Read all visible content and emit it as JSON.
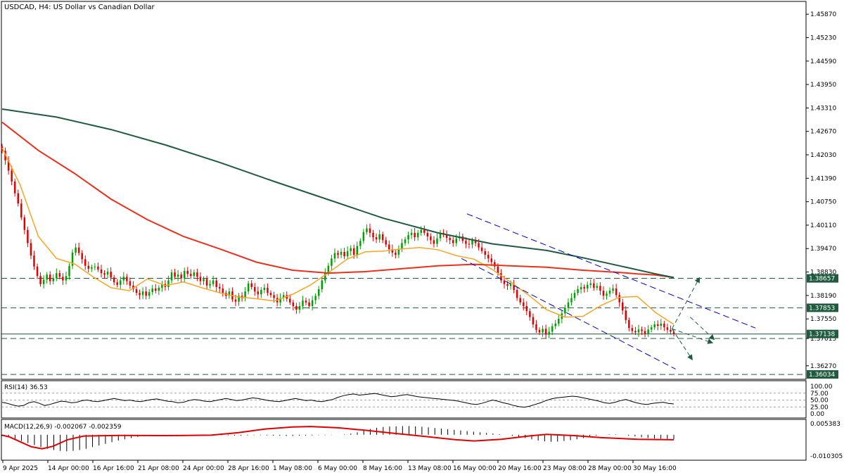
{
  "header": {
    "title": "USDCAD, H4:  US Dollar vs Canadian Dollar"
  },
  "colors": {
    "bull": "#00a000",
    "bear": "#e00000",
    "ma_fast": "#f5a623",
    "ma_mid": "#e8321e",
    "ma_slow": "#1f5c3f",
    "channel": "#0000cc",
    "level": "#1f5c3f",
    "arrow": "#1f5c3f",
    "rsi": "#000000",
    "macd_signal": "#e00000",
    "macd_hist": "#000000"
  },
  "chart_data": [
    {
      "type": "line",
      "name": "price",
      "ylim": [
        1.3592,
        1.462
      ],
      "price_axis_ticks": [
        "1.45870",
        "1.45230",
        "1.44590",
        "1.43950",
        "1.43310",
        "1.42670",
        "1.42030",
        "1.41390",
        "1.40750",
        "1.40110",
        "1.39470",
        "1.38830",
        "1.38190",
        "1.37550",
        "1.37015",
        "1.36270"
      ],
      "level_badges": [
        {
          "text": "1.38657",
          "value": 1.38657
        },
        {
          "text": "1.37853",
          "value": 1.37853
        },
        {
          "text": "1.37138",
          "value": 1.37138
        },
        {
          "text": "1.36034",
          "value": 1.36034
        }
      ],
      "horizontal_levels": [
        1.38657,
        1.37853,
        1.37015,
        1.36034
      ],
      "close_line": 1.37138,
      "x_labels": [
        "9 Apr 2025",
        "14 Apr 00:00",
        "16 Apr 16:00",
        "21 Apr 08:00",
        "24 Apr 00:00",
        "28 Apr 16:00",
        "1 May 08:00",
        "6 May 00:00",
        "8 May 16:00",
        "13 May 08:00",
        "16 May 00:00",
        "20 May 16:00",
        "23 May 08:00",
        "28 May 00:00",
        "30 May 16:00"
      ],
      "close_series": [
        1.4214,
        1.4188,
        1.416,
        1.413,
        1.4098,
        1.407,
        1.4032,
        1.3998,
        1.3962,
        1.3928,
        1.3898,
        1.3872,
        1.385,
        1.3862,
        1.3876,
        1.3858,
        1.3866,
        1.388,
        1.387,
        1.386,
        1.3872,
        1.39,
        1.3936,
        1.395,
        1.3935,
        1.3918,
        1.39,
        1.3892,
        1.3896,
        1.3898,
        1.389,
        1.388,
        1.3876,
        1.3884,
        1.3868,
        1.3855,
        1.3848,
        1.386,
        1.387,
        1.3858,
        1.3846,
        1.3836,
        1.3826,
        1.382,
        1.383,
        1.3818,
        1.3828,
        1.3838,
        1.3832,
        1.384,
        1.385,
        1.3842,
        1.386,
        1.3882,
        1.387,
        1.3876,
        1.3866,
        1.3886,
        1.3878,
        1.3872,
        1.3882,
        1.387,
        1.3858,
        1.3864,
        1.3846,
        1.385,
        1.386,
        1.3842,
        1.3838,
        1.3826,
        1.3818,
        1.383,
        1.3808,
        1.3802,
        1.3818,
        1.3812,
        1.383,
        1.3852,
        1.3842,
        1.383,
        1.3822,
        1.3834,
        1.384,
        1.3826,
        1.382,
        1.3812,
        1.38,
        1.3812,
        1.382,
        1.381,
        1.38,
        1.379,
        1.378,
        1.379,
        1.3805,
        1.38,
        1.379,
        1.3806,
        1.3818,
        1.3836,
        1.386,
        1.388,
        1.39,
        1.392,
        1.3935,
        1.393,
        1.3938,
        1.3926,
        1.394,
        1.3948,
        1.393,
        1.3954,
        1.3968,
        1.3992,
        1.4002,
        1.399,
        1.3978,
        1.3972,
        1.3986,
        1.397,
        1.3958,
        1.3945,
        1.3936,
        1.393,
        1.3946,
        1.3962,
        1.3972,
        1.3984,
        1.399,
        1.3978,
        1.399,
        1.3998,
        1.399,
        1.398,
        1.397,
        1.396,
        1.3975,
        1.399,
        1.3985,
        1.3976,
        1.397,
        1.3962,
        1.3975,
        1.398,
        1.3968,
        1.396,
        1.3958,
        1.397,
        1.3962,
        1.395,
        1.394,
        1.393,
        1.392,
        1.391,
        1.3898,
        1.388,
        1.386,
        1.385,
        1.3845,
        1.385,
        1.3834,
        1.3812,
        1.38,
        1.379,
        1.3776,
        1.376,
        1.374,
        1.3725,
        1.3718,
        1.3728,
        1.3712,
        1.372,
        1.3735,
        1.3742,
        1.3755,
        1.377,
        1.3785,
        1.38,
        1.3812,
        1.3826,
        1.3836,
        1.3842,
        1.3838,
        1.3848,
        1.3852,
        1.384,
        1.3845,
        1.3832,
        1.3818,
        1.3824,
        1.3832,
        1.3838,
        1.382,
        1.38,
        1.3778,
        1.3752,
        1.373,
        1.3722,
        1.3718,
        1.3726,
        1.3722,
        1.3715,
        1.3726,
        1.3732,
        1.374,
        1.3736,
        1.3742,
        1.3732,
        1.3725,
        1.372,
        1.37138
      ],
      "overlays": [
        {
          "name": "fast MA (orange)",
          "points": [
            [
              0,
              1.4222
            ],
            [
              20,
              1.412
            ],
            [
              40,
              1.398
            ],
            [
              60,
              1.392
            ],
            [
              80,
              1.3905
            ],
            [
              100,
              1.387
            ],
            [
              120,
              1.384
            ],
            [
              140,
              1.3832
            ],
            [
              160,
              1.3864
            ],
            [
              180,
              1.3846
            ],
            [
              200,
              1.3856
            ],
            [
              220,
              1.384
            ],
            [
              240,
              1.3826
            ],
            [
              260,
              1.3815
            ],
            [
              280,
              1.381
            ],
            [
              300,
              1.3804
            ],
            [
              320,
              1.3822
            ],
            [
              340,
              1.3848
            ],
            [
              360,
              1.3882
            ],
            [
              380,
              1.3918
            ],
            [
              400,
              1.3938
            ],
            [
              420,
              1.394
            ],
            [
              440,
              1.3946
            ],
            [
              460,
              1.395
            ],
            [
              480,
              1.3944
            ],
            [
              500,
              1.3928
            ],
            [
              520,
              1.3918
            ],
            [
              540,
              1.389
            ],
            [
              560,
              1.3856
            ],
            [
              580,
              1.382
            ],
            [
              600,
              1.378
            ],
            [
              620,
              1.376
            ],
            [
              640,
              1.3762
            ],
            [
              660,
              1.3792
            ],
            [
              680,
              1.3814
            ],
            [
              700,
              1.3816
            ],
            [
              720,
              1.3772
            ],
            [
              740,
              1.374
            ]
          ]
        },
        {
          "name": "mid MA (red)",
          "points": [
            [
              0,
              1.4292
            ],
            [
              40,
              1.4215
            ],
            [
              80,
              1.4152
            ],
            [
              120,
              1.4082
            ],
            [
              160,
              1.4026
            ],
            [
              200,
              1.398
            ],
            [
              240,
              1.3946
            ],
            [
              280,
              1.391
            ],
            [
              320,
              1.3888
            ],
            [
              360,
              1.388
            ],
            [
              400,
              1.3884
            ],
            [
              440,
              1.3892
            ],
            [
              480,
              1.39
            ],
            [
              520,
              1.3904
            ],
            [
              560,
              1.39
            ],
            [
              600,
              1.3896
            ],
            [
              640,
              1.3888
            ],
            [
              680,
              1.3882
            ],
            [
              700,
              1.3878
            ],
            [
              720,
              1.3875
            ],
            [
              740,
              1.3868
            ]
          ]
        },
        {
          "name": "slow MA (dark green)",
          "points": [
            [
              0,
              1.4328
            ],
            [
              60,
              1.4306
            ],
            [
              120,
              1.4272
            ],
            [
              180,
              1.423
            ],
            [
              240,
              1.4182
            ],
            [
              300,
              1.413
            ],
            [
              360,
              1.408
            ],
            [
              420,
              1.403
            ],
            [
              480,
              1.399
            ],
            [
              540,
              1.396
            ],
            [
              600,
              1.3942
            ],
            [
              640,
              1.3922
            ],
            [
              680,
              1.39
            ],
            [
              720,
              1.3878
            ],
            [
              740,
              1.3868
            ]
          ]
        }
      ],
      "channel_lines": [
        {
          "from": [
            506,
            1.392
          ],
          "to": [
            742,
            1.3618
          ]
        },
        {
          "from": [
            512,
            1.4042
          ],
          "to": [
            830,
            1.373
          ]
        }
      ],
      "arrows": [
        {
          "from": [
            738,
            1.3728
          ],
          "to": [
            768,
            1.3866
          ]
        },
        {
          "from": [
            738,
            1.3728
          ],
          "to": [
            782,
            1.369
          ]
        },
        {
          "from": [
            738,
            1.3728
          ],
          "to": [
            760,
            1.3645
          ]
        },
        {
          "from": [
            758,
            1.376
          ],
          "to": [
            784,
            1.37
          ]
        }
      ]
    },
    {
      "type": "line",
      "name": "RSI",
      "label": "RSI(14) 36.53",
      "ylim": [
        0,
        100
      ],
      "ticks": [
        "100.00",
        "75.00",
        "50.00",
        "25.00",
        "0.00"
      ],
      "levels": [
        75,
        50,
        25
      ],
      "values": [
        42,
        38,
        32,
        28,
        30,
        40,
        44,
        38,
        30,
        34,
        40,
        46,
        44,
        40,
        42,
        48,
        50,
        46,
        44,
        48,
        52,
        56,
        52,
        48,
        50,
        46,
        44,
        48,
        52,
        54,
        50,
        46,
        44,
        40,
        42,
        48,
        52,
        50,
        46,
        44,
        48,
        52,
        56,
        52,
        48,
        50,
        54,
        58,
        56,
        52,
        48,
        46,
        44,
        48,
        52,
        56,
        52,
        48,
        50,
        46,
        44,
        48,
        52,
        60,
        66,
        70,
        72,
        68,
        70,
        72,
        74,
        70,
        66,
        62,
        64,
        68,
        70,
        66,
        62,
        60,
        58,
        56,
        54,
        52,
        50,
        48,
        44,
        40,
        36,
        34,
        38,
        44,
        50,
        46,
        40,
        36,
        30,
        26,
        24,
        28,
        34,
        40,
        48,
        54,
        58,
        60,
        62,
        64,
        62,
        58,
        54,
        50,
        46,
        40,
        38,
        42,
        48,
        52,
        46,
        40,
        36,
        34,
        38,
        40,
        42,
        38,
        36
      ]
    },
    {
      "type": "bar",
      "name": "MACD",
      "label": "MACD(12,26,9) -0.002067 -0.002359",
      "ylim": [
        -0.0103,
        0.0054
      ],
      "ticks": [
        "0.005383",
        "-0.010305"
      ],
      "histogram": [
        -0.0006,
        -0.0012,
        -0.002,
        -0.003,
        -0.004,
        -0.005,
        -0.006,
        -0.0068,
        -0.0074,
        -0.0078,
        -0.008,
        -0.0078,
        -0.0074,
        -0.0068,
        -0.006,
        -0.0052,
        -0.0044,
        -0.0036,
        -0.0028,
        -0.0022,
        -0.0016,
        -0.001,
        -0.0006,
        -0.0002,
        0.0,
        -0.0002,
        -0.0004,
        -0.0004,
        -0.0003,
        -0.0002,
        -0.0001,
        0.0,
        0.0,
        -0.0001,
        -0.0002,
        -0.0003,
        -0.0004,
        -0.0004,
        -0.0003,
        -0.0002,
        -0.0002,
        -0.0003,
        -0.0004,
        -0.0005,
        -0.0006,
        -0.0006,
        -0.0005,
        -0.0004,
        -0.0003,
        -0.0002,
        -0.0002,
        -0.0001,
        0.0,
        0.0002,
        0.0006,
        0.0012,
        0.002,
        0.0028,
        0.0034,
        0.0038,
        0.004,
        0.0041,
        0.0042,
        0.0042,
        0.0041,
        0.0039,
        0.0036,
        0.0033,
        0.003,
        0.0027,
        0.0024,
        0.0021,
        0.0018,
        0.0015,
        0.0012,
        0.0009,
        0.0006,
        0.0003,
        0.0,
        -0.0005,
        -0.001,
        -0.0016,
        -0.0022,
        -0.0028,
        -0.0032,
        -0.0034,
        -0.0033,
        -0.003,
        -0.0026,
        -0.0022,
        -0.0016,
        -0.001,
        -0.0004,
        0.0,
        0.0002,
        0.0002,
        0.0,
        -0.0004,
        -0.0008,
        -0.0012,
        -0.0016,
        -0.0018,
        -0.0019,
        -0.002,
        -0.0021
      ],
      "signal": [
        [
          0,
          -0.0002
        ],
        [
          8,
          -0.001
        ],
        [
          20,
          -0.0034
        ],
        [
          32,
          -0.0058
        ],
        [
          44,
          -0.0068
        ],
        [
          56,
          -0.0056
        ],
        [
          72,
          -0.0024
        ],
        [
          90,
          -0.0006
        ],
        [
          130,
          -0.0003
        ],
        [
          180,
          -0.0004
        ],
        [
          230,
          -0.0002
        ],
        [
          260,
          0.001
        ],
        [
          290,
          0.0028
        ],
        [
          320,
          0.0038
        ],
        [
          340,
          0.004
        ],
        [
          370,
          0.0034
        ],
        [
          400,
          0.0022
        ],
        [
          430,
          0.0008
        ],
        [
          470,
          -0.001
        ],
        [
          500,
          -0.0024
        ],
        [
          520,
          -0.003
        ],
        [
          550,
          -0.0022
        ],
        [
          580,
          -0.0006
        ],
        [
          600,
          0.0002
        ],
        [
          630,
          -0.0004
        ],
        [
          660,
          -0.0014
        ],
        [
          700,
          -0.0022
        ],
        [
          740,
          -0.0024
        ]
      ]
    }
  ]
}
